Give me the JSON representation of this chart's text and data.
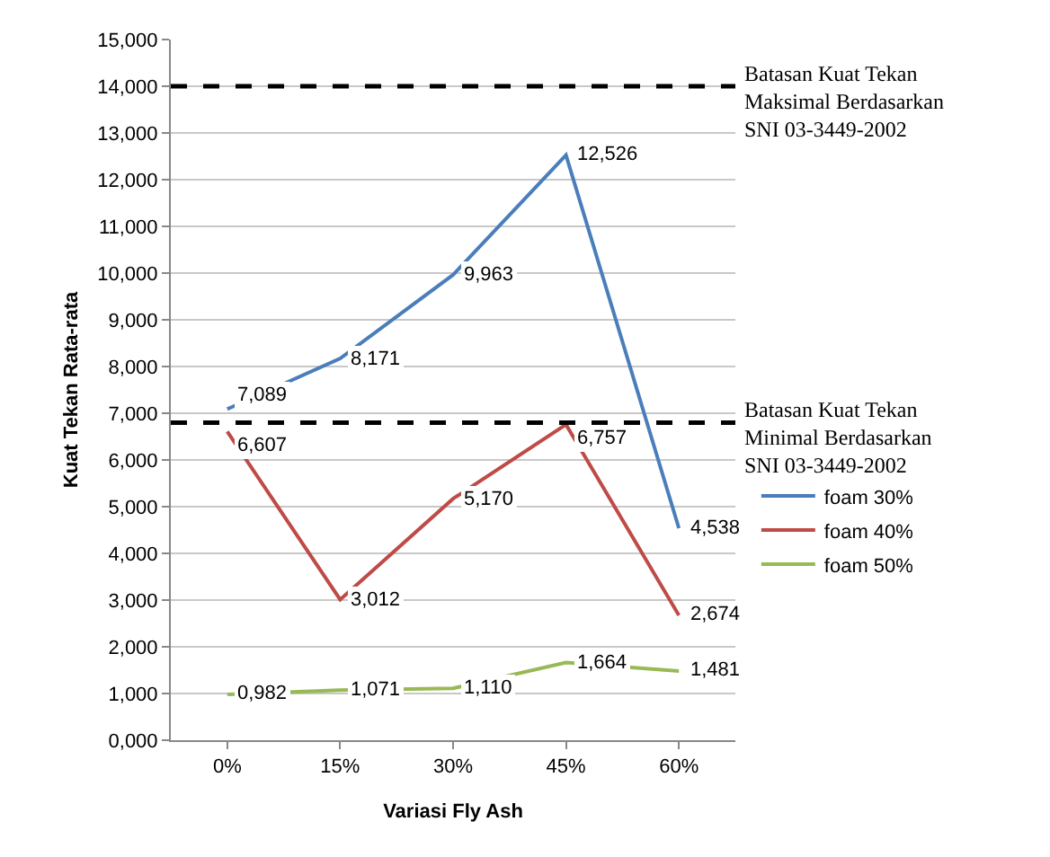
{
  "chart_data": {
    "type": "line",
    "xlabel": "Variasi Fly Ash",
    "ylabel": "Kuat Tekan Rata-rata",
    "categories": [
      "0%",
      "15%",
      "30%",
      "45%",
      "60%"
    ],
    "series": [
      {
        "name": "foam 30%",
        "color": "#4a7ebb",
        "values": [
          7.089,
          8.171,
          9.963,
          12.526,
          4.538
        ],
        "value_labels": [
          "7,089",
          "8,171",
          "9,963",
          "12,526",
          "4,538"
        ]
      },
      {
        "name": "foam 40%",
        "color": "#be4b48",
        "values": [
          6.607,
          3.012,
          5.17,
          6.757,
          2.674
        ],
        "value_labels": [
          "6,607",
          "3,012",
          "5,170",
          "6,757",
          "2,674"
        ]
      },
      {
        "name": "foam 50%",
        "color": "#98b954",
        "values": [
          0.982,
          1.071,
          1.11,
          1.664,
          1.481
        ],
        "value_labels": [
          "0,982",
          "1,071",
          "1,110",
          "1,664",
          "1,481"
        ]
      }
    ],
    "ylim": [
      0,
      15
    ],
    "yticks": [
      {
        "value": 0,
        "label": "0,000"
      },
      {
        "value": 1,
        "label": "1,000"
      },
      {
        "value": 2,
        "label": "2,000"
      },
      {
        "value": 3,
        "label": "3,000"
      },
      {
        "value": 4,
        "label": "4,000"
      },
      {
        "value": 5,
        "label": "5,000"
      },
      {
        "value": 6,
        "label": "6,000"
      },
      {
        "value": 7,
        "label": "7,000"
      },
      {
        "value": 8,
        "label": "8,000"
      },
      {
        "value": 9,
        "label": "9,000"
      },
      {
        "value": 10,
        "label": "10,000"
      },
      {
        "value": 11,
        "label": "11,000"
      },
      {
        "value": 12,
        "label": "12,000"
      },
      {
        "value": 13,
        "label": "13,000"
      },
      {
        "value": 14,
        "label": "14,000"
      },
      {
        "value": 15,
        "label": "15,000"
      }
    ],
    "ref_lines": [
      {
        "axis": "y",
        "value": 14,
        "label": "Batasan Kuat Tekan Maksimal Berdasarkan SNI 03-3449-2002",
        "color": "#000000",
        "line_style": "dashed"
      },
      {
        "axis": "y",
        "value": 6.8,
        "label": "Batasan Kuat Tekan Minimal Berdasarkan SNI 03-3449-2002",
        "color": "#000000",
        "line_style": "dashed"
      }
    ],
    "grid": "y",
    "legend": "right",
    "marker": "none",
    "line_style": "solid"
  }
}
